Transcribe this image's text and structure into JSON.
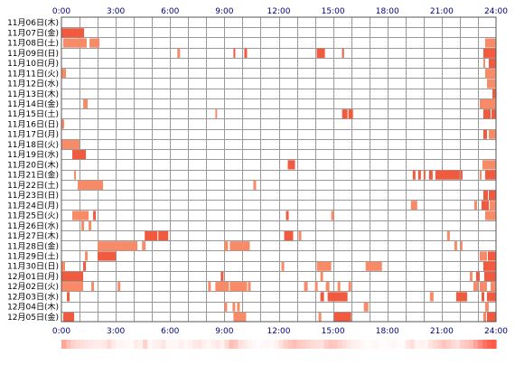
{
  "chart_data": {
    "type": "heatmap",
    "title": "",
    "xlabel": "",
    "ylabel": "",
    "x_range_hours": [
      0,
      24
    ],
    "x_tick_labels": [
      "0:00",
      "3:00",
      "6:00",
      "9:00",
      "12:00",
      "15:00",
      "18:00",
      "21:00",
      "24:00"
    ],
    "grid": true,
    "colors": {
      "dark": "#f05a3f",
      "light": "#f78b68",
      "grid": "#999999",
      "border": "#555555",
      "text": "#000080"
    },
    "rows": [
      {
        "label": "11月06日(木)",
        "intervals": []
      },
      {
        "label": "11月07日(金)",
        "intervals": [
          [
            0.0,
            1.25,
            "d"
          ]
        ]
      },
      {
        "label": "11月08日(土)",
        "intervals": [
          [
            0.1,
            1.4,
            "l"
          ],
          [
            1.55,
            2.1,
            "l"
          ],
          [
            23.4,
            24.0,
            "l"
          ]
        ]
      },
      {
        "label": "11月09日(日)",
        "intervals": [
          [
            6.4,
            6.55,
            "l"
          ],
          [
            9.5,
            9.6,
            "d"
          ],
          [
            10.1,
            10.25,
            "d"
          ],
          [
            14.1,
            14.55,
            "d"
          ],
          [
            15.5,
            15.6,
            "d"
          ],
          [
            23.3,
            24.0,
            "d"
          ]
        ]
      },
      {
        "label": "11月10日(月)",
        "intervals": [
          [
            23.3,
            23.4,
            "l"
          ],
          [
            23.6,
            24.0,
            "d"
          ]
        ]
      },
      {
        "label": "11月11日(火)",
        "intervals": [
          [
            0.0,
            0.25,
            "l"
          ],
          [
            23.4,
            24.0,
            "l"
          ]
        ]
      },
      {
        "label": "11月12日(水)",
        "intervals": [
          [
            23.5,
            24.0,
            "l"
          ]
        ]
      },
      {
        "label": "11月13日(木)",
        "intervals": [
          [
            23.8,
            24.0,
            "d"
          ]
        ]
      },
      {
        "label": "11月14日(金)",
        "intervals": [
          [
            1.2,
            1.45,
            "l"
          ],
          [
            23.1,
            24.0,
            "l"
          ]
        ]
      },
      {
        "label": "11月15日(土)",
        "intervals": [
          [
            8.5,
            8.6,
            "l"
          ],
          [
            15.5,
            15.8,
            "d"
          ],
          [
            15.85,
            16.1,
            "d"
          ],
          [
            23.3,
            23.7,
            "d"
          ],
          [
            23.75,
            24.0,
            "d"
          ]
        ]
      },
      {
        "label": "11月16日(日)",
        "intervals": [
          [
            0.0,
            0.15,
            "l"
          ]
        ]
      },
      {
        "label": "11月17日(月)",
        "intervals": [
          [
            23.3,
            23.5,
            "d"
          ],
          [
            23.6,
            24.0,
            "l"
          ]
        ]
      },
      {
        "label": "11月18日(火)",
        "intervals": [
          [
            0.0,
            1.0,
            "l"
          ]
        ]
      },
      {
        "label": "11月19日(水)",
        "intervals": [
          [
            0.6,
            1.35,
            "d"
          ]
        ]
      },
      {
        "label": "11月20日(木)",
        "intervals": [
          [
            12.5,
            12.9,
            "d"
          ],
          [
            23.25,
            24.0,
            "l"
          ]
        ]
      },
      {
        "label": "11月21日(金)",
        "intervals": [
          [
            0.7,
            0.8,
            "l"
          ],
          [
            19.4,
            19.55,
            "d"
          ],
          [
            19.7,
            19.85,
            "d"
          ],
          [
            20.0,
            20.1,
            "d"
          ],
          [
            20.3,
            20.5,
            "d"
          ],
          [
            20.65,
            22.0,
            "d"
          ],
          [
            22.05,
            22.15,
            "d"
          ],
          [
            23.1,
            23.2,
            "l"
          ],
          [
            23.4,
            24.0,
            "d"
          ]
        ]
      },
      {
        "label": "11月22日(土)",
        "intervals": [
          [
            0.9,
            2.3,
            "l"
          ],
          [
            10.6,
            10.75,
            "l"
          ]
        ]
      },
      {
        "label": "11月23日(日)",
        "intervals": [
          [
            23.3,
            23.55,
            "d"
          ],
          [
            23.6,
            24.0,
            "d"
          ]
        ]
      },
      {
        "label": "11月24日(月)",
        "intervals": [
          [
            19.3,
            19.65,
            "l"
          ],
          [
            22.8,
            22.95,
            "l"
          ],
          [
            23.2,
            23.6,
            "d"
          ],
          [
            23.65,
            24.0,
            "l"
          ]
        ]
      },
      {
        "label": "11月25日(火)",
        "intervals": [
          [
            0.6,
            1.5,
            "l"
          ],
          [
            1.75,
            1.9,
            "d"
          ],
          [
            12.4,
            12.55,
            "d"
          ],
          [
            14.9,
            15.05,
            "l"
          ],
          [
            23.4,
            24.0,
            "l"
          ]
        ]
      },
      {
        "label": "11月26日(水)",
        "intervals": [
          [
            1.1,
            1.25,
            "l"
          ],
          [
            1.5,
            1.65,
            "l"
          ]
        ]
      },
      {
        "label": "11月27日(木)",
        "intervals": [
          [
            4.6,
            5.3,
            "d"
          ],
          [
            5.35,
            5.9,
            "d"
          ],
          [
            12.3,
            12.8,
            "d"
          ],
          [
            13.1,
            13.25,
            "l"
          ],
          [
            21.3,
            21.45,
            "l"
          ]
        ]
      },
      {
        "label": "11月28日(金)",
        "intervals": [
          [
            2.0,
            4.2,
            "l"
          ],
          [
            4.45,
            4.65,
            "l"
          ],
          [
            9.0,
            9.2,
            "l"
          ],
          [
            9.3,
            10.4,
            "l"
          ],
          [
            21.7,
            21.85,
            "l"
          ],
          [
            22.05,
            22.15,
            "l"
          ]
        ]
      },
      {
        "label": "11月29日(土)",
        "intervals": [
          [
            1.3,
            1.45,
            "l"
          ],
          [
            2.0,
            3.0,
            "d"
          ],
          [
            23.1,
            23.5,
            "l"
          ],
          [
            23.55,
            24.0,
            "d"
          ]
        ]
      },
      {
        "label": "11月30日(日)",
        "intervals": [
          [
            0.0,
            0.2,
            "l"
          ],
          [
            1.2,
            1.35,
            "d"
          ],
          [
            12.15,
            12.3,
            "l"
          ],
          [
            14.1,
            14.9,
            "l"
          ],
          [
            16.8,
            17.7,
            "l"
          ],
          [
            23.3,
            24.0,
            "d"
          ]
        ]
      },
      {
        "label": "12月01日(月)",
        "intervals": [
          [
            0.0,
            1.2,
            "d"
          ],
          [
            8.8,
            8.95,
            "d"
          ],
          [
            14.3,
            14.45,
            "l"
          ],
          [
            22.55,
            22.7,
            "l"
          ],
          [
            22.9,
            23.1,
            "d"
          ],
          [
            23.35,
            24.0,
            "d"
          ]
        ]
      },
      {
        "label": "12月02日(火)",
        "intervals": [
          [
            0.0,
            1.2,
            "l"
          ],
          [
            1.65,
            1.8,
            "l"
          ],
          [
            3.1,
            3.25,
            "l"
          ],
          [
            8.1,
            8.25,
            "l"
          ],
          [
            8.5,
            9.25,
            "l"
          ],
          [
            9.3,
            10.25,
            "l"
          ],
          [
            10.3,
            10.45,
            "l"
          ],
          [
            13.4,
            13.6,
            "l"
          ],
          [
            14.0,
            14.15,
            "l"
          ],
          [
            14.6,
            14.8,
            "l"
          ],
          [
            15.25,
            15.4,
            "l"
          ],
          [
            15.85,
            16.0,
            "l"
          ],
          [
            22.75,
            23.0,
            "l"
          ],
          [
            23.1,
            23.5,
            "l"
          ],
          [
            23.7,
            24.0,
            "l"
          ]
        ]
      },
      {
        "label": "12月03日(水)",
        "intervals": [
          [
            0.3,
            0.45,
            "d"
          ],
          [
            14.3,
            14.5,
            "d"
          ],
          [
            14.7,
            15.8,
            "d"
          ],
          [
            20.35,
            20.55,
            "l"
          ],
          [
            21.8,
            22.4,
            "d"
          ],
          [
            23.2,
            23.35,
            "d"
          ],
          [
            23.5,
            24.0,
            "d"
          ]
        ]
      },
      {
        "label": "12月04日(木)",
        "intervals": [
          [
            9.0,
            9.15,
            "l"
          ],
          [
            9.45,
            9.6,
            "l"
          ],
          [
            9.7,
            9.85,
            "l"
          ],
          [
            16.7,
            16.95,
            "l"
          ],
          [
            23.4,
            23.6,
            "l"
          ]
        ]
      },
      {
        "label": "12月05日(金)",
        "intervals": [
          [
            0.1,
            0.7,
            "d"
          ],
          [
            9.5,
            10.2,
            "l"
          ],
          [
            14.2,
            14.35,
            "l"
          ],
          [
            15.05,
            16.0,
            "d"
          ],
          [
            23.3,
            23.45,
            "l"
          ],
          [
            23.5,
            24.0,
            "d"
          ]
        ]
      }
    ],
    "strip_profile": [
      0.55,
      0.4,
      0.28,
      0.22,
      0.2,
      0.16,
      0.14,
      0.12,
      0.12,
      0.14,
      0.22,
      0.12,
      0.06,
      0.06,
      0.03,
      0.03,
      0.12,
      0.08,
      0.28,
      0.05,
      0.08,
      0.1,
      0.16,
      0.05,
      0.06,
      0.05,
      0.1,
      0.05,
      0.08,
      0.14,
      0.16,
      0.1,
      0.05,
      0.1,
      0.14,
      0.08,
      0.22,
      0.4,
      0.34,
      0.18,
      0.14,
      0.08,
      0.04,
      0.02,
      0.04,
      0.06,
      0.03,
      0.08,
      0.18,
      0.28,
      0.35,
      0.4,
      0.32,
      0.3,
      0.26,
      0.22,
      0.2,
      0.18,
      0.3,
      0.36,
      0.33,
      0.26,
      0.2,
      0.14,
      0.1,
      0.08,
      0.04,
      0.02,
      0.03,
      0.05,
      0.02,
      0.02,
      0.03,
      0.05,
      0.02,
      0.02,
      0.14,
      0.2,
      0.06,
      0.08,
      0.06,
      0.16,
      0.22,
      0.28,
      0.36,
      0.3,
      0.24,
      0.18,
      0.3,
      0.34,
      0.4,
      0.55,
      0.7,
      0.85,
      0.95,
      1.0
    ]
  }
}
